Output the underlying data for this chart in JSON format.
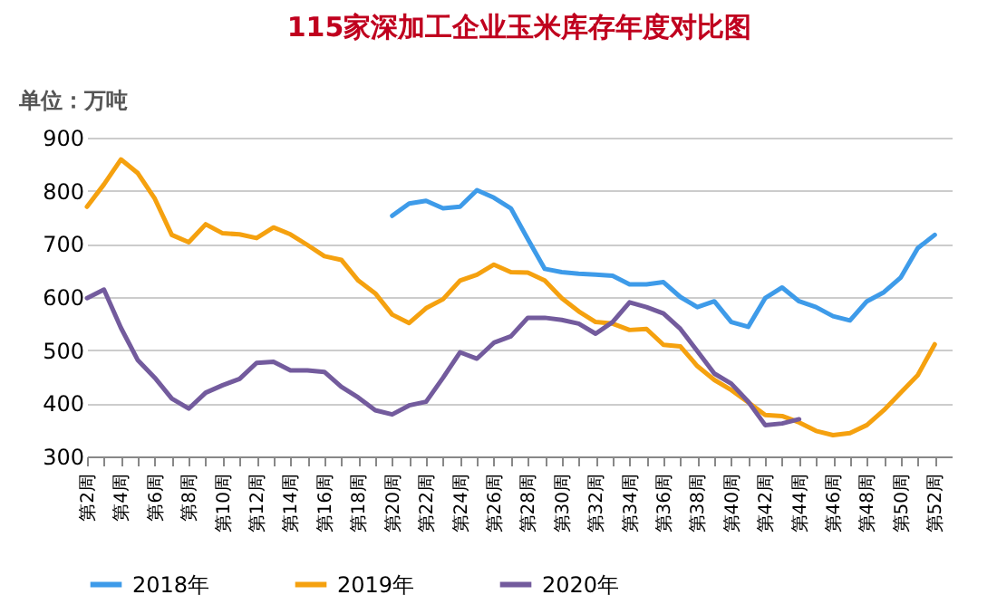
{
  "chart_data": {
    "type": "line",
    "title": "115家深加工企业玉米库存年度对比图",
    "ylabel": "单位：万吨",
    "categories": [
      "第2周",
      null,
      "第4周",
      null,
      "第6周",
      null,
      "第8周",
      null,
      "第10周",
      null,
      "第12周",
      null,
      "第14周",
      null,
      "第16周",
      null,
      "第18周",
      null,
      "第20周",
      null,
      "第22周",
      null,
      "第24周",
      null,
      "第26周",
      null,
      "第28周",
      null,
      "第30周",
      null,
      "第32周",
      null,
      "第34周",
      null,
      "第36周",
      null,
      "第38周",
      null,
      "第40周",
      null,
      "第42周",
      null,
      "第44周",
      null,
      "第46周",
      null,
      "第48周",
      null,
      "第50周",
      null,
      "第52周"
    ],
    "series": [
      {
        "name": "2018年",
        "color": "#3e9be9",
        "values": [
          null,
          null,
          null,
          null,
          null,
          null,
          null,
          null,
          null,
          null,
          null,
          null,
          null,
          null,
          null,
          null,
          null,
          null,
          753,
          776,
          781,
          767,
          770,
          801,
          787,
          767,
          709,
          653,
          647,
          644,
          642,
          640,
          624,
          624,
          628,
          600,
          581,
          592,
          553,
          544,
          598,
          618,
          592,
          581,
          564,
          556,
          592,
          609,
          637,
          692,
          717
        ]
      },
      {
        "name": "2019年",
        "color": "#f5a10f",
        "values": [
          770,
          812,
          859,
          833,
          785,
          717,
          703,
          737,
          720,
          718,
          711,
          731,
          718,
          698,
          677,
          670,
          631,
          607,
          567,
          551,
          579,
          596,
          631,
          642,
          661,
          647,
          646,
          631,
          598,
          573,
          553,
          550,
          538,
          540,
          510,
          507,
          470,
          444,
          425,
          402,
          378,
          376,
          364,
          348,
          340,
          344,
          359,
          387,
          420,
          453,
          511
        ]
      },
      {
        "name": "2020年",
        "color": "#735b9d",
        "values": [
          598,
          614,
          542,
          481,
          448,
          409,
          390,
          420,
          434,
          446,
          476,
          478,
          462,
          462,
          459,
          431,
          411,
          387,
          379,
          396,
          403,
          448,
          496,
          484,
          514,
          526,
          561,
          561,
          557,
          550,
          531,
          553,
          590,
          581,
          569,
          540,
          498,
          456,
          437,
          403,
          359,
          362,
          370,
          null,
          null,
          null,
          null,
          null,
          null,
          null,
          null
        ]
      }
    ],
    "ylim": [
      300,
      900
    ],
    "yticks": [
      300,
      400,
      500,
      600,
      700,
      800,
      900
    ],
    "grid": "y",
    "legend": "bottom",
    "line_style": "solid",
    "marker": "none"
  }
}
